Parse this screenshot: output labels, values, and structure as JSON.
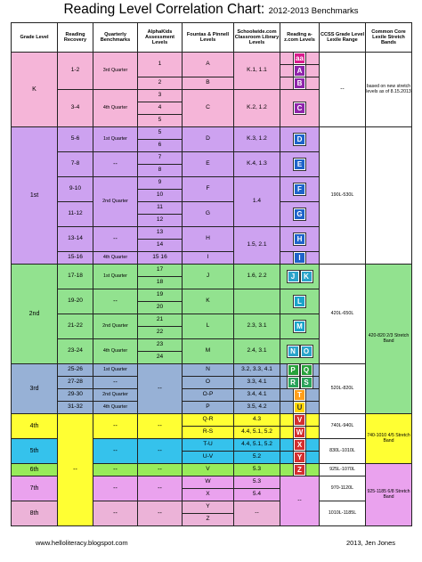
{
  "title": {
    "main": "Reading Level Correlation Chart:",
    "sub": "2012-2013 Benchmarks"
  },
  "headers": {
    "grade": "Grade Level",
    "rr": "Reading Recovery",
    "qb": "Quarterly Benchmarks",
    "alpha": "AlphaKids Assessment Levels",
    "fp": "Fountas & Pinnell Levels",
    "school": "Schoolwide.com Classroom Library Levels",
    "az": "Reading a-z.com Levels",
    "ccss": "CCSS Grade Level Lexile Range",
    "common": "Common Core Lexile Stretch Bands"
  },
  "grades": {
    "k": "K",
    "g1": "1st",
    "g2": "2nd",
    "g3": "3rd",
    "g4": "4th",
    "g5": "5th",
    "g6": "6th",
    "g7": "7th",
    "g8": "8th"
  },
  "rr": {
    "r12": "1-2",
    "r34": "3-4",
    "r56": "5-6",
    "r78": "7-8",
    "r910": "9-10",
    "r1112": "11-12",
    "r1314": "13-14",
    "r1516": "15-16",
    "r1718": "17-18",
    "r1920": "19-20",
    "r2122": "21-22",
    "r2324": "23-24",
    "r2526": "25-26",
    "r2728": "27-28",
    "r2930": "29-30",
    "r3132": "31-32"
  },
  "qb": {
    "q3": "3rd Quarter",
    "q4": "4th Quarter",
    "q1": "1st Quarter",
    "q2": "2nd Quarter",
    "dash": "--"
  },
  "alpha": [
    "1",
    "2",
    "3",
    "4",
    "5",
    "6",
    "7",
    "8",
    "9",
    "10",
    "11",
    "12",
    "13",
    "14",
    "15",
    "16",
    "17",
    "18",
    "19",
    "20",
    "21",
    "22",
    "23",
    "24"
  ],
  "fp": {
    "A": "A",
    "B": "B",
    "C": "C",
    "D": "D",
    "E": "E",
    "F": "F",
    "G": "G",
    "H": "H",
    "I": "I",
    "J": "J",
    "K": "K",
    "L": "L",
    "M": "M",
    "N": "N",
    "O": "O",
    "OP": "O-P",
    "P": "P",
    "QR": "Q-R",
    "RS": "R-S",
    "TU": "T-U",
    "UV": "U-V",
    "V": "V",
    "W": "W",
    "X": "X",
    "Y": "Y",
    "Z": "Z"
  },
  "school": {
    "k11": "K.1, 1.1",
    "k22": "K.2, 1.2",
    "k31": "K.3, 1.2",
    "k41": "K.4, 1.3",
    "s14": "1.4",
    "s15": "1.5, 2.1",
    "s16": "1.6, 2.2",
    "s23": "2.3, 3.1",
    "s24": "2.4, 3.1",
    "s32": "3.2, 3.3, 4.1",
    "s33": "3.3, 4.1",
    "s34": "3.4, 4.1",
    "s35": "3.5, 4.2",
    "s43": "4.3",
    "s44": "4.4, 5.1, 5.2",
    "s52": "5.2",
    "s53": "5.3",
    "s54": "5.4",
    "dash": "--"
  },
  "az": {
    "aa": "aa",
    "A": "A",
    "B": "B",
    "C": "C",
    "D": "D",
    "E": "E",
    "F": "F",
    "G": "G",
    "H": "H",
    "I": "I",
    "J": "J",
    "K": "K",
    "L": "L",
    "M": "M",
    "N": "N",
    "O": "O",
    "P": "P",
    "Q": "Q",
    "R": "R",
    "S": "S",
    "T": "T",
    "U": "U",
    "V": "V",
    "W": "W",
    "X": "X",
    "Y": "Y",
    "Z": "Z"
  },
  "ccss": {
    "k": "--",
    "g1": "190L-530L",
    "g2": "420L-650L",
    "g3": "520L-820L",
    "g4": "740L-940L",
    "g5": "830L-1010L",
    "g6": "925L-1070L",
    "g7": "970-1120L",
    "g8": "1010L-1185L"
  },
  "common": {
    "note": "based on new stretch levels as of 8.15.2013",
    "b23": "420-820 2/3 Stretch Band",
    "b45": "740-1010 4/5 Stretch Band",
    "b68": "925-1185 6/8 Stretch Band"
  },
  "footer": {
    "left": "www.helloliteracy.blogspot.com",
    "right": "2013, Jen Jones"
  },
  "colors": {
    "tile_aa": "#d81b8c",
    "tile_AC": "#8e24aa",
    "tile_DI": "#1e63c9",
    "tile_JO": "#2aa3c9",
    "tile_L": "#1aa3c9",
    "tile_PQ": "#27a13a",
    "tile_RS": "#2aa35a",
    "tile_T": "#ff9e1b",
    "tile_U": "#ffd600",
    "tile_VZ": "#d32f2f"
  }
}
